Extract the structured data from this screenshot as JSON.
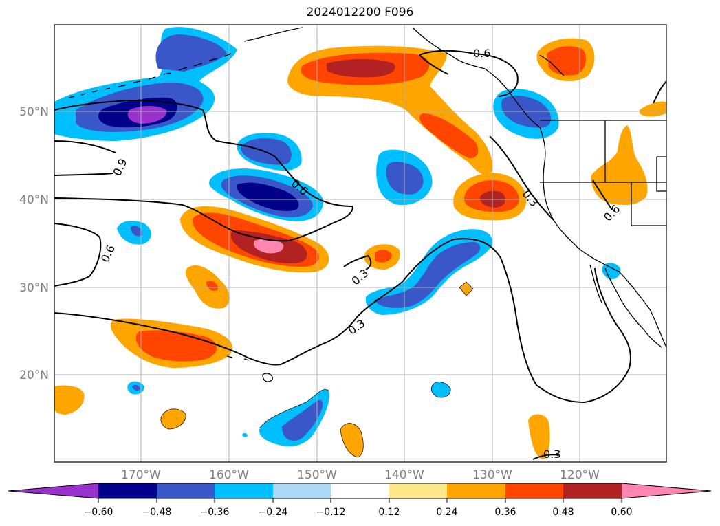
{
  "title": "2024012200 F096",
  "map": {
    "lat_labels": [
      "50°N",
      "40°N",
      "30°N",
      "20°N"
    ],
    "lon_labels": [
      "170°W",
      "160°W",
      "150°W",
      "140°W",
      "130°W",
      "120°W"
    ],
    "contour_labels": [
      "0.6",
      "0.9",
      "0.6",
      "0.6",
      "0.3",
      "0.6",
      "0.3",
      "0.3",
      "0.3"
    ]
  },
  "colorbar": {
    "colors": [
      "#9932cc",
      "#00008b",
      "#3a57c9",
      "#00bfff",
      "#add8f5",
      "#ffffff",
      "#ffe88a",
      "#ffa500",
      "#ff4500",
      "#b22222",
      "#ff86b0",
      "#ff86b0"
    ],
    "tick_labels": [
      "−0.60",
      "−0.48",
      "−0.36",
      "−0.24",
      "−0.12",
      "0.12",
      "0.24",
      "0.36",
      "0.48",
      "0.60"
    ]
  }
}
